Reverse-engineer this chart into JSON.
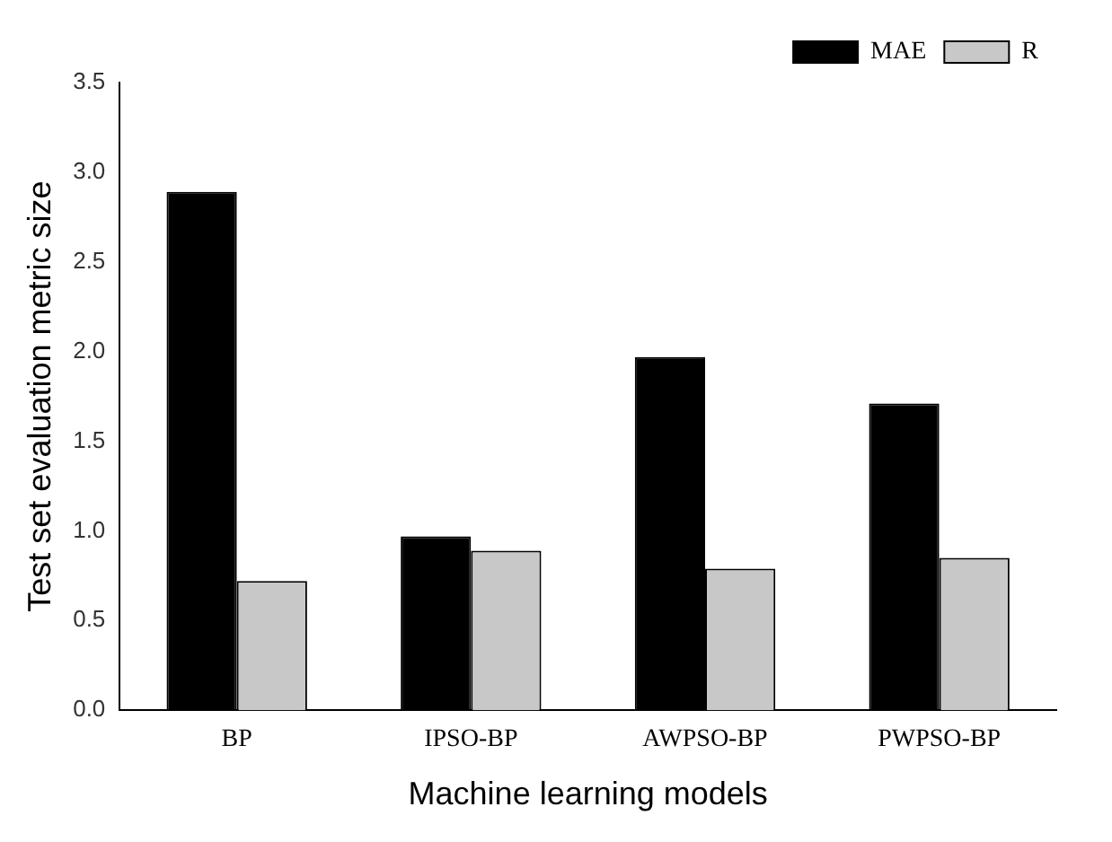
{
  "chart_data": {
    "type": "bar",
    "xlabel": "Machine learning models",
    "ylabel": "Test set evaluation metric size",
    "categories": [
      "BP",
      "IPSO-BP",
      "AWPSO-BP",
      "PWPSO-BP"
    ],
    "series": [
      {
        "name": "MAE",
        "color": "#000000",
        "values": [
          2.89,
          0.97,
          1.97,
          1.71
        ]
      },
      {
        "name": "R",
        "color": "#c8c8c8",
        "values": [
          0.72,
          0.89,
          0.79,
          0.85
        ]
      }
    ],
    "ylim": [
      0,
      3.5
    ],
    "yticks": [
      {
        "value": 0,
        "label": "0.0"
      },
      0.5,
      {
        "value": 1,
        "label": "1.0"
      },
      1.5,
      {
        "value": 2,
        "label": "2.0"
      },
      2.5,
      {
        "value": 3,
        "label": "3.0"
      },
      3.5
    ],
    "grid": false,
    "legend": "top right"
  }
}
